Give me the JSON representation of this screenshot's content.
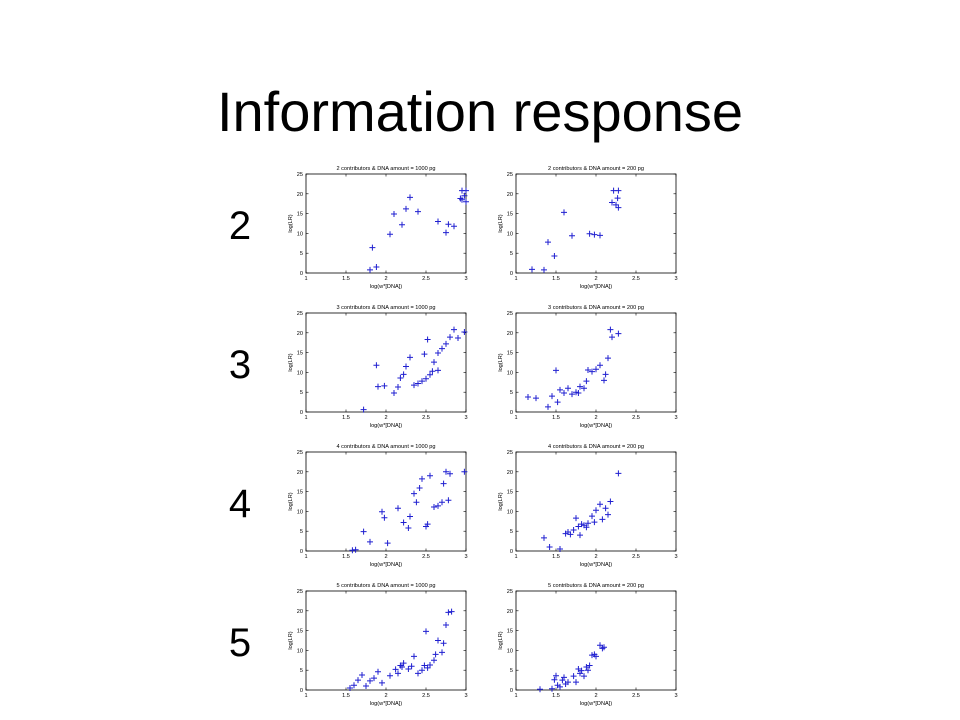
{
  "slide": {
    "title": "Information response",
    "row_labels": [
      "2",
      "3",
      "4",
      "5"
    ]
  },
  "style": {
    "marker_color": "#1f1fd0",
    "axis_color": "#000000"
  },
  "chart_data": [
    {
      "type": "scatter",
      "title": "2 contributors & DNA amount = 1000 pg",
      "xlabel": "log(w*[DNA])",
      "ylabel": "log(LR)",
      "xlim": [
        1,
        3
      ],
      "ylim": [
        0,
        25
      ],
      "xticks": [
        "1",
        "1.5",
        "2",
        "2.5",
        "3"
      ],
      "yticks": [
        "0",
        "5",
        "10",
        "15",
        "20",
        "25"
      ],
      "points": [
        [
          1.8,
          0.8
        ],
        [
          1.83,
          6.4
        ],
        [
          1.88,
          1.5
        ],
        [
          2.05,
          9.8
        ],
        [
          2.1,
          14.9
        ],
        [
          2.2,
          12.2
        ],
        [
          2.25,
          16.2
        ],
        [
          2.3,
          19.1
        ],
        [
          2.4,
          15.5
        ],
        [
          2.65,
          13.0
        ],
        [
          2.75,
          10.2
        ],
        [
          2.78,
          12.3
        ],
        [
          2.85,
          11.8
        ],
        [
          2.93,
          18.8
        ],
        [
          2.95,
          18.5
        ],
        [
          2.95,
          20.8
        ],
        [
          2.98,
          19.5
        ],
        [
          3.0,
          20.8
        ],
        [
          3.0,
          18.0
        ]
      ]
    },
    {
      "type": "scatter",
      "title": "2 contributors & DNA amount = 200 pg",
      "xlabel": "log(w*[DNA])",
      "ylabel": "log(LR)",
      "xlim": [
        1,
        3
      ],
      "ylim": [
        0,
        25
      ],
      "xticks": [
        "1",
        "1.5",
        "2",
        "2.5",
        "3"
      ],
      "yticks": [
        "0",
        "5",
        "10",
        "15",
        "20",
        "25"
      ],
      "points": [
        [
          1.2,
          0.9
        ],
        [
          1.35,
          0.8
        ],
        [
          1.4,
          7.8
        ],
        [
          1.48,
          4.3
        ],
        [
          1.6,
          15.3
        ],
        [
          1.7,
          9.4
        ],
        [
          1.92,
          9.9
        ],
        [
          1.98,
          9.7
        ],
        [
          2.05,
          9.5
        ],
        [
          2.2,
          17.8
        ],
        [
          2.22,
          20.8
        ],
        [
          2.25,
          17.2
        ],
        [
          2.27,
          18.9
        ],
        [
          2.28,
          20.8
        ],
        [
          2.28,
          16.5
        ]
      ]
    },
    {
      "type": "scatter",
      "title": "3 contributors & DNA amount = 1000 pg",
      "xlabel": "log(w*[DNA])",
      "ylabel": "log(LR)",
      "xlim": [
        1,
        3
      ],
      "ylim": [
        0,
        25
      ],
      "xticks": [
        "1",
        "1.5",
        "2",
        "2.5",
        "3"
      ],
      "yticks": [
        "0",
        "5",
        "10",
        "15",
        "20",
        "25"
      ],
      "points": [
        [
          1.72,
          0.6
        ],
        [
          1.88,
          11.8
        ],
        [
          1.9,
          6.4
        ],
        [
          1.98,
          6.6
        ],
        [
          2.1,
          4.8
        ],
        [
          2.15,
          6.3
        ],
        [
          2.18,
          8.6
        ],
        [
          2.22,
          9.5
        ],
        [
          2.25,
          11.5
        ],
        [
          2.3,
          13.8
        ],
        [
          2.35,
          6.8
        ],
        [
          2.4,
          7.2
        ],
        [
          2.45,
          7.8
        ],
        [
          2.48,
          14.6
        ],
        [
          2.5,
          8.4
        ],
        [
          2.52,
          18.3
        ],
        [
          2.55,
          9.4
        ],
        [
          2.58,
          10.3
        ],
        [
          2.6,
          12.6
        ],
        [
          2.65,
          10.5
        ],
        [
          2.65,
          14.9
        ],
        [
          2.7,
          16.0
        ],
        [
          2.75,
          17.2
        ],
        [
          2.8,
          18.9
        ],
        [
          2.85,
          20.8
        ],
        [
          2.9,
          18.7
        ],
        [
          2.98,
          20.2
        ]
      ]
    },
    {
      "type": "scatter",
      "title": "3 contributors & DNA amount = 200 pg",
      "xlabel": "log(w*[DNA])",
      "ylabel": "log(LR)",
      "xlim": [
        1,
        3
      ],
      "ylim": [
        0,
        25
      ],
      "xticks": [
        "1",
        "1.5",
        "2",
        "2.5",
        "3"
      ],
      "yticks": [
        "0",
        "5",
        "10",
        "15",
        "20",
        "25"
      ],
      "points": [
        [
          1.15,
          3.8
        ],
        [
          1.25,
          3.5
        ],
        [
          1.4,
          1.3
        ],
        [
          1.45,
          4.0
        ],
        [
          1.5,
          10.5
        ],
        [
          1.52,
          2.5
        ],
        [
          1.55,
          5.6
        ],
        [
          1.6,
          4.8
        ],
        [
          1.65,
          6.0
        ],
        [
          1.7,
          4.5
        ],
        [
          1.75,
          5.0
        ],
        [
          1.78,
          4.8
        ],
        [
          1.8,
          6.4
        ],
        [
          1.85,
          6.0
        ],
        [
          1.88,
          7.8
        ],
        [
          1.9,
          10.6
        ],
        [
          1.95,
          10.2
        ],
        [
          2.0,
          10.8
        ],
        [
          2.05,
          11.8
        ],
        [
          2.1,
          8.0
        ],
        [
          2.12,
          9.5
        ],
        [
          2.15,
          13.6
        ],
        [
          2.18,
          20.8
        ],
        [
          2.2,
          18.9
        ],
        [
          2.28,
          19.8
        ]
      ]
    },
    {
      "type": "scatter",
      "title": "4 contributors & DNA amount = 1000 pg",
      "xlabel": "log(w*[DNA])",
      "ylabel": "log(LR)",
      "xlim": [
        1,
        3
      ],
      "ylim": [
        0,
        25
      ],
      "xticks": [
        "1",
        "1.5",
        "2",
        "2.5",
        "3"
      ],
      "yticks": [
        "0",
        "5",
        "10",
        "15",
        "20",
        "25"
      ],
      "points": [
        [
          1.58,
          0.2
        ],
        [
          1.62,
          0.3
        ],
        [
          1.72,
          4.9
        ],
        [
          1.8,
          2.3
        ],
        [
          1.95,
          9.9
        ],
        [
          1.98,
          8.4
        ],
        [
          2.02,
          2.0
        ],
        [
          2.15,
          10.8
        ],
        [
          2.22,
          7.2
        ],
        [
          2.28,
          5.8
        ],
        [
          2.3,
          8.7
        ],
        [
          2.35,
          14.5
        ],
        [
          2.38,
          12.3
        ],
        [
          2.42,
          15.9
        ],
        [
          2.45,
          18.2
        ],
        [
          2.5,
          6.2
        ],
        [
          2.52,
          6.8
        ],
        [
          2.55,
          19.0
        ],
        [
          2.6,
          11.1
        ],
        [
          2.65,
          11.4
        ],
        [
          2.7,
          12.3
        ],
        [
          2.72,
          17.0
        ],
        [
          2.75,
          20.0
        ],
        [
          2.78,
          12.8
        ],
        [
          2.8,
          19.5
        ],
        [
          2.98,
          20.0
        ]
      ]
    },
    {
      "type": "scatter",
      "title": "4 contributors & DNA amount = 200 pg",
      "xlabel": "log(w*[DNA])",
      "ylabel": "log(LR)",
      "xlim": [
        1,
        3
      ],
      "ylim": [
        0,
        25
      ],
      "xticks": [
        "1",
        "1.5",
        "2",
        "2.5",
        "3"
      ],
      "yticks": [
        "0",
        "5",
        "10",
        "15",
        "20",
        "25"
      ],
      "points": [
        [
          1.35,
          3.3
        ],
        [
          1.42,
          1.0
        ],
        [
          1.55,
          0.5
        ],
        [
          1.62,
          4.4
        ],
        [
          1.65,
          4.8
        ],
        [
          1.68,
          4.2
        ],
        [
          1.72,
          5.3
        ],
        [
          1.75,
          8.3
        ],
        [
          1.78,
          6.2
        ],
        [
          1.8,
          4.0
        ],
        [
          1.82,
          6.8
        ],
        [
          1.85,
          6.5
        ],
        [
          1.88,
          6.0
        ],
        [
          1.9,
          7.0
        ],
        [
          1.95,
          8.8
        ],
        [
          1.98,
          7.3
        ],
        [
          2.0,
          10.3
        ],
        [
          2.05,
          11.8
        ],
        [
          2.08,
          8.0
        ],
        [
          2.12,
          10.8
        ],
        [
          2.15,
          9.2
        ],
        [
          2.18,
          12.5
        ],
        [
          2.28,
          19.6
        ]
      ]
    },
    {
      "type": "scatter",
      "title": "5 contributors & DNA amount = 1000 pg",
      "xlabel": "log(w*[DNA])",
      "ylabel": "log(LR)",
      "xlim": [
        1,
        3
      ],
      "ylim": [
        0,
        25
      ],
      "xticks": [
        "1",
        "1.5",
        "2",
        "2.5",
        "3"
      ],
      "yticks": [
        "0",
        "5",
        "10",
        "15",
        "20",
        "25"
      ],
      "points": [
        [
          1.55,
          0.5
        ],
        [
          1.6,
          1.2
        ],
        [
          1.65,
          2.5
        ],
        [
          1.7,
          3.8
        ],
        [
          1.75,
          1.0
        ],
        [
          1.8,
          2.3
        ],
        [
          1.85,
          3.0
        ],
        [
          1.9,
          4.6
        ],
        [
          1.95,
          1.8
        ],
        [
          2.05,
          3.6
        ],
        [
          2.12,
          5.2
        ],
        [
          2.15,
          4.2
        ],
        [
          2.18,
          6.2
        ],
        [
          2.2,
          5.8
        ],
        [
          2.22,
          6.8
        ],
        [
          2.28,
          5.3
        ],
        [
          2.32,
          6.0
        ],
        [
          2.35,
          8.5
        ],
        [
          2.4,
          4.2
        ],
        [
          2.45,
          5.0
        ],
        [
          2.48,
          6.2
        ],
        [
          2.5,
          14.8
        ],
        [
          2.52,
          5.6
        ],
        [
          2.55,
          6.3
        ],
        [
          2.6,
          7.5
        ],
        [
          2.62,
          9.0
        ],
        [
          2.65,
          12.5
        ],
        [
          2.7,
          9.5
        ],
        [
          2.72,
          11.8
        ],
        [
          2.75,
          16.4
        ],
        [
          2.78,
          19.6
        ],
        [
          2.82,
          19.8
        ]
      ]
    },
    {
      "type": "scatter",
      "title": "5 contributors & DNA amount = 200 pg",
      "xlabel": "log(w*[DNA])",
      "ylabel": "log(LR)",
      "xlim": [
        1,
        3
      ],
      "ylim": [
        0,
        25
      ],
      "xticks": [
        "1",
        "1.5",
        "2",
        "2.5",
        "3"
      ],
      "yticks": [
        "0",
        "5",
        "10",
        "15",
        "20",
        "25"
      ],
      "points": [
        [
          1.3,
          0.2
        ],
        [
          1.45,
          0.3
        ],
        [
          1.48,
          2.6
        ],
        [
          1.5,
          3.6
        ],
        [
          1.52,
          1.2
        ],
        [
          1.55,
          0.8
        ],
        [
          1.58,
          2.5
        ],
        [
          1.6,
          3.2
        ],
        [
          1.62,
          1.5
        ],
        [
          1.65,
          2.0
        ],
        [
          1.72,
          3.5
        ],
        [
          1.75,
          2.0
        ],
        [
          1.78,
          5.3
        ],
        [
          1.8,
          4.2
        ],
        [
          1.82,
          4.9
        ],
        [
          1.85,
          3.5
        ],
        [
          1.88,
          5.8
        ],
        [
          1.9,
          5.0
        ],
        [
          1.92,
          6.2
        ],
        [
          1.95,
          8.8
        ],
        [
          1.98,
          9.0
        ],
        [
          2.0,
          8.5
        ],
        [
          2.05,
          11.3
        ],
        [
          2.08,
          10.5
        ],
        [
          2.1,
          10.8
        ]
      ]
    }
  ]
}
